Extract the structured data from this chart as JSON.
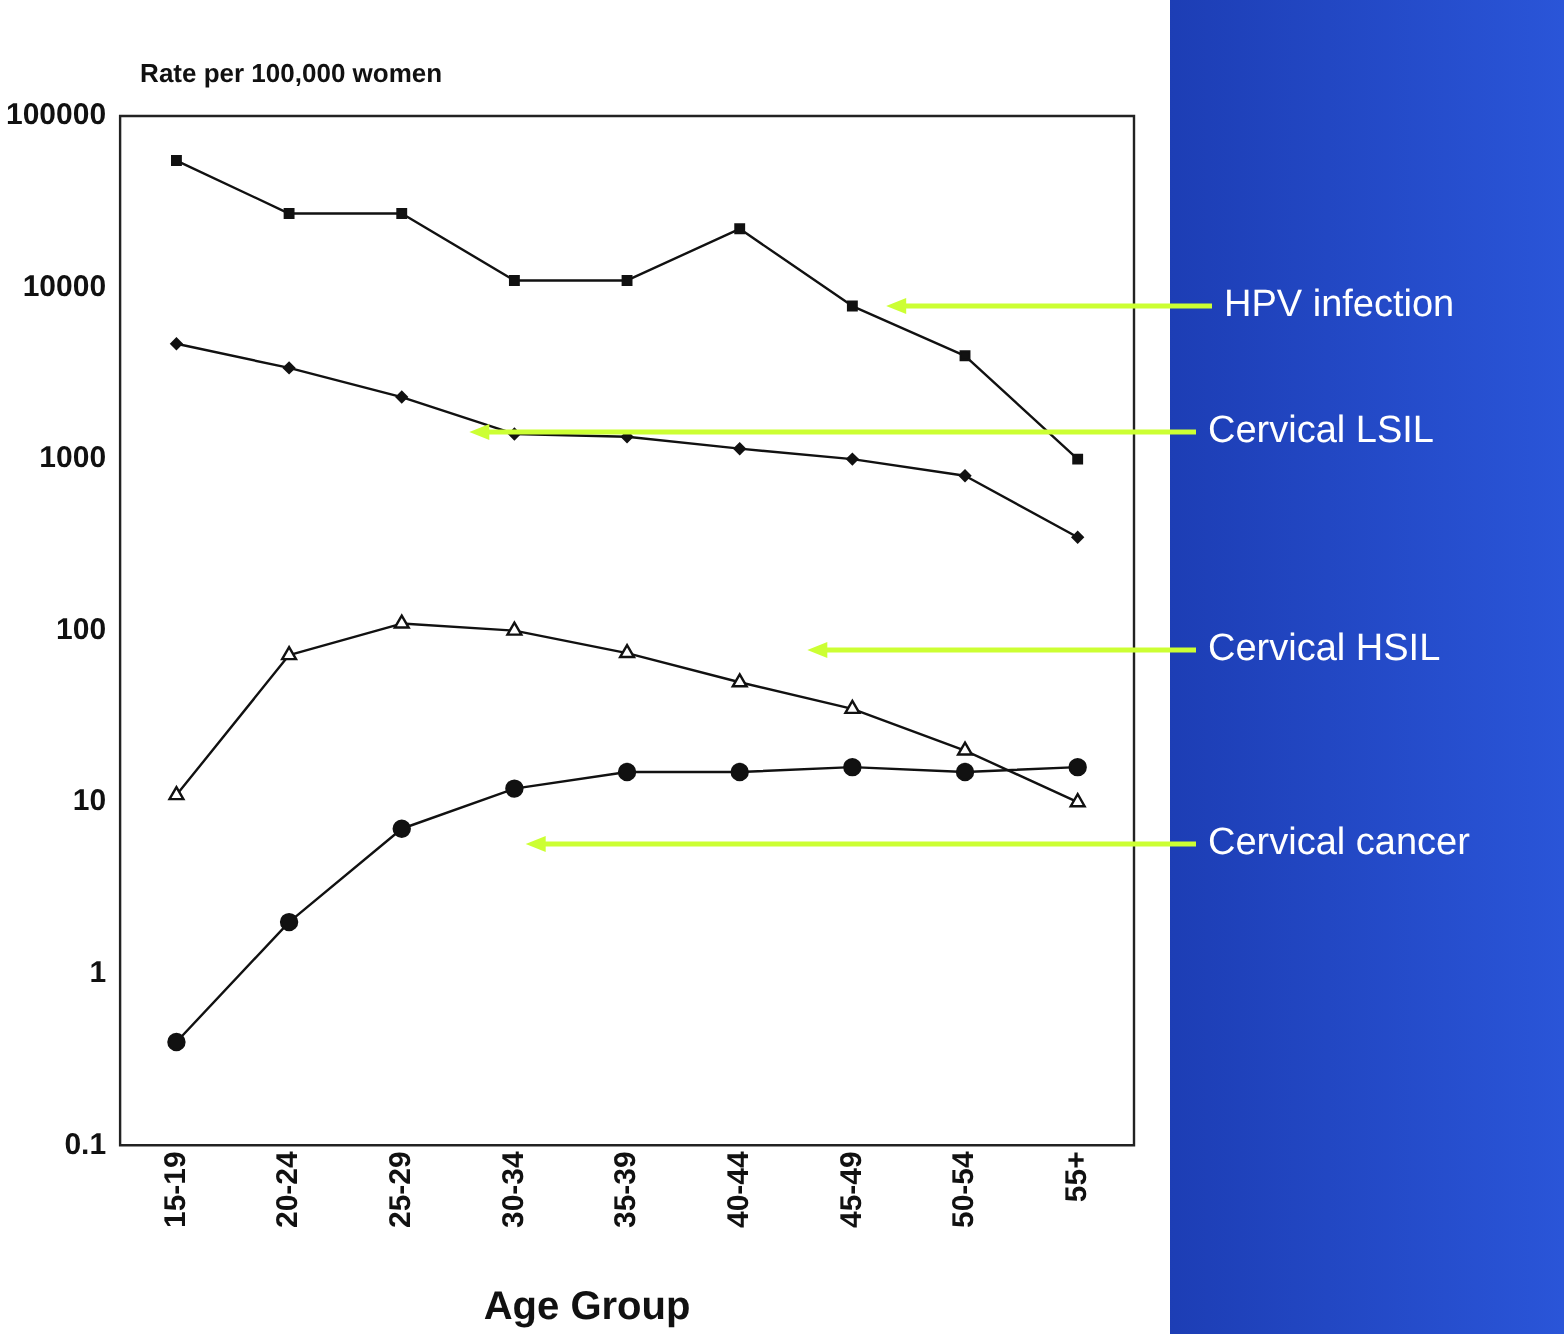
{
  "chart_data": {
    "type": "line",
    "ylabel": "Rate per 100,000 women",
    "xlabel": "Age Group",
    "categories": [
      "15-19",
      "20-24",
      "25-29",
      "30-34",
      "35-39",
      "40-44",
      "45-49",
      "50-54",
      "55+"
    ],
    "log": "y",
    "ylim": [
      0.1,
      100000
    ],
    "yticks": [
      0.1,
      1,
      10,
      100,
      1000,
      10000,
      100000
    ],
    "grid": false,
    "legend": false,
    "series": [
      {
        "name": "HPV infection",
        "color": "#111111",
        "marker": "square",
        "values": [
          55000,
          27000,
          27000,
          11000,
          11000,
          22000,
          7800,
          4000,
          1000
        ]
      },
      {
        "name": "Cervical LSIL",
        "color": "#111111",
        "marker": "diamond",
        "values": [
          4700,
          3400,
          2300,
          1400,
          1350,
          1150,
          1000,
          800,
          350
        ]
      },
      {
        "name": "Cervical HSIL",
        "color": "#111111",
        "marker": "triangle",
        "values": [
          11,
          72,
          110,
          100,
          74,
          50,
          35,
          20,
          10
        ]
      },
      {
        "name": "Cervical cancer",
        "color": "#111111",
        "marker": "circle",
        "values": [
          0.4,
          2,
          7,
          12,
          15,
          15,
          16,
          15,
          16
        ]
      }
    ]
  }
}
